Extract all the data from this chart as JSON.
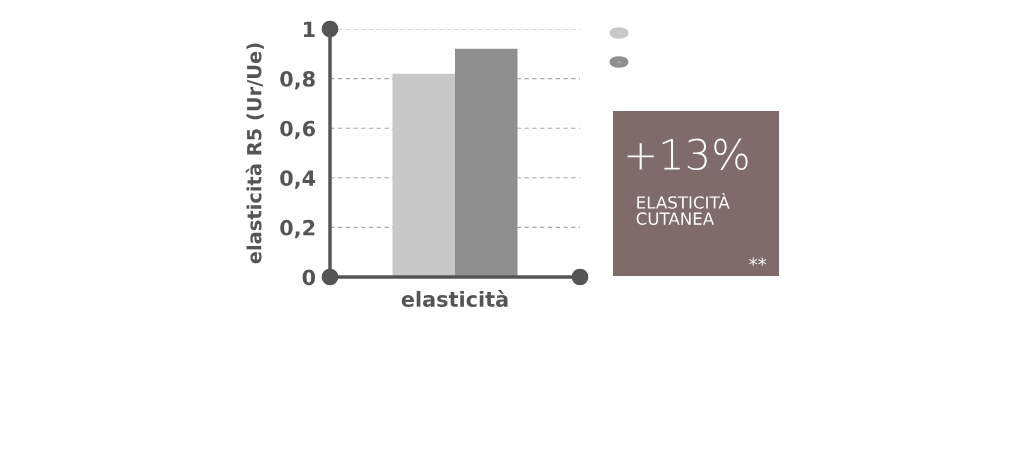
{
  "chart_data": {
    "type": "bar",
    "ylabel": "elasticità R5 (Ur/Ue)",
    "categories": [
      "elasticità"
    ],
    "series": [
      {
        "color": "#c8c8c8",
        "values": [
          0.82
        ]
      },
      {
        "color": "#8f8f8f",
        "values": [
          0.92
        ]
      }
    ],
    "ylim": [
      0,
      1
    ],
    "yticks": [
      0,
      {
        "value": 0.2,
        "label": "0,2"
      },
      {
        "value": 0.4,
        "label": "0,4"
      },
      {
        "value": 0.6,
        "label": "0,6"
      },
      {
        "value": 0.8,
        "label": "0,8"
      },
      1
    ],
    "grid": "y",
    "annotations": [
      "+13%",
      "ELASTICITÀ\nCUTANEA",
      "**"
    ]
  }
}
